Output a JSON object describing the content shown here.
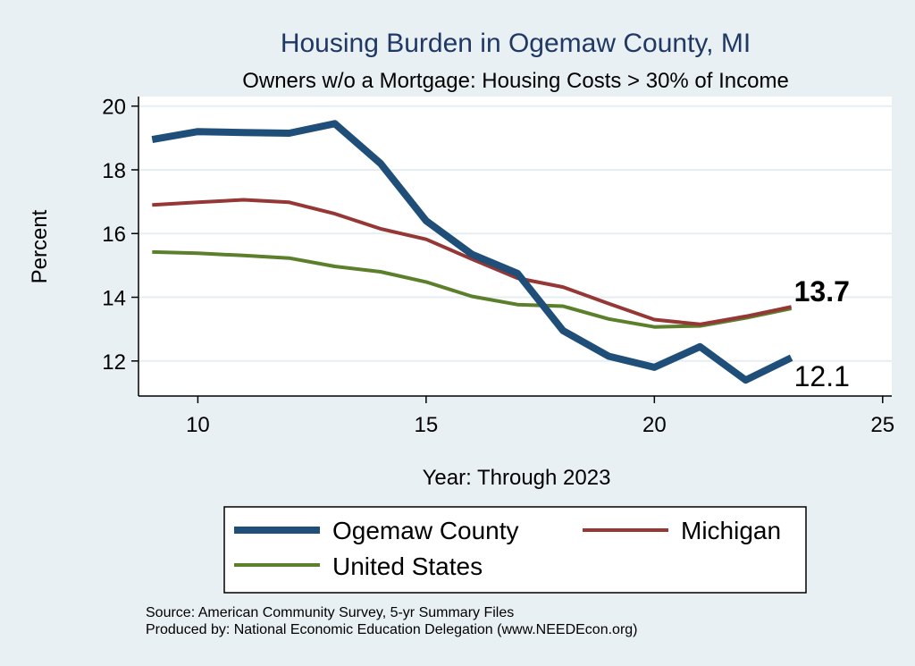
{
  "chart_data": {
    "type": "line",
    "title": "Housing Burden in Ogemaw County, MI",
    "subtitle": "Owners w/o a Mortgage: Housing Costs > 30% of Income",
    "xlabel": "Year: Through 2023",
    "ylabel": "Percent",
    "xlim": [
      8.7,
      25.2
    ],
    "ylim": [
      10.9,
      20.3
    ],
    "xticks": [
      10,
      15,
      20,
      25
    ],
    "yticks": [
      12,
      14,
      16,
      18,
      20
    ],
    "grid": true,
    "x": [
      9,
      10,
      11,
      12,
      13,
      14,
      15,
      16,
      17,
      18,
      19,
      20,
      21,
      22,
      23
    ],
    "series": [
      {
        "name": "Ogemaw County",
        "color": "#1f4e79",
        "values": [
          18.95,
          19.2,
          19.17,
          19.15,
          19.45,
          18.2,
          16.4,
          15.35,
          14.75,
          12.95,
          12.15,
          11.8,
          12.45,
          11.4,
          12.1
        ]
      },
      {
        "name": "Michigan",
        "color": "#953735",
        "values": [
          16.9,
          16.98,
          17.06,
          16.98,
          16.62,
          16.15,
          15.82,
          15.2,
          14.6,
          14.32,
          13.8,
          13.3,
          13.15,
          13.4,
          13.7
        ]
      },
      {
        "name": "United States",
        "color": "#5b7f2b",
        "values": [
          15.42,
          15.38,
          15.31,
          15.23,
          14.97,
          14.8,
          14.48,
          14.03,
          13.77,
          13.72,
          13.32,
          13.07,
          13.1,
          13.35,
          13.65
        ]
      }
    ],
    "end_labels": [
      {
        "text": "13.7",
        "series": "Michigan",
        "bold": true
      },
      {
        "text": "12.1",
        "series": "Ogemaw County",
        "bold": false
      }
    ],
    "legend": {
      "position": "bottom",
      "items": [
        "Ogemaw County",
        "Michigan",
        "United States"
      ]
    },
    "source_lines": [
      "Source: American Community Survey, 5-yr Summary Files",
      "Produced by: National Economic Education Delegation (www.NEEDEcon.org)"
    ]
  }
}
